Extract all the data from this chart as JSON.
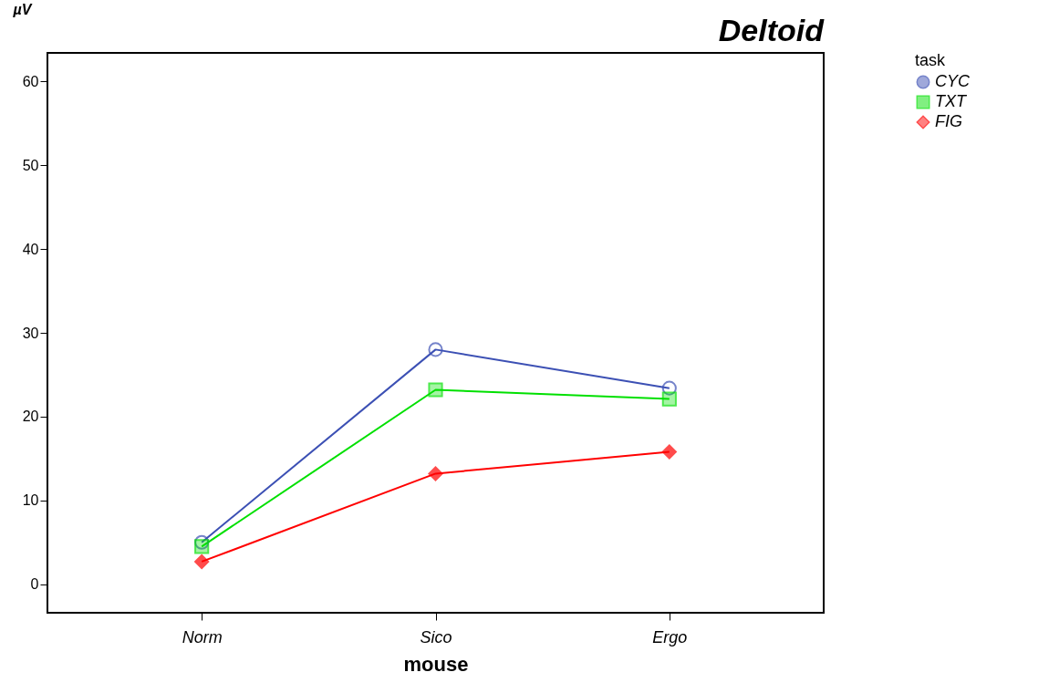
{
  "chart_data": {
    "type": "line",
    "title": "Deltoid",
    "xlabel": "mouse",
    "ylabel": "µV",
    "legend_title": "task",
    "categories": [
      "Norm",
      "Sico",
      "Ergo"
    ],
    "series": [
      {
        "name": "CYC",
        "color": "#3c50b4",
        "marker": "circle",
        "values": [
          5.0,
          28.0,
          23.4
        ]
      },
      {
        "name": "TXT",
        "color": "#00e000",
        "marker": "square",
        "values": [
          4.5,
          23.2,
          22.1
        ]
      },
      {
        "name": "FIG",
        "color": "#ff0000",
        "marker": "diamond",
        "values": [
          2.7,
          13.2,
          15.8
        ]
      }
    ],
    "ylim": [
      -3.4,
      63.4
    ],
    "yticks": [
      0,
      10,
      20,
      30,
      40,
      50,
      60
    ],
    "grid": false,
    "legend": "top right"
  }
}
